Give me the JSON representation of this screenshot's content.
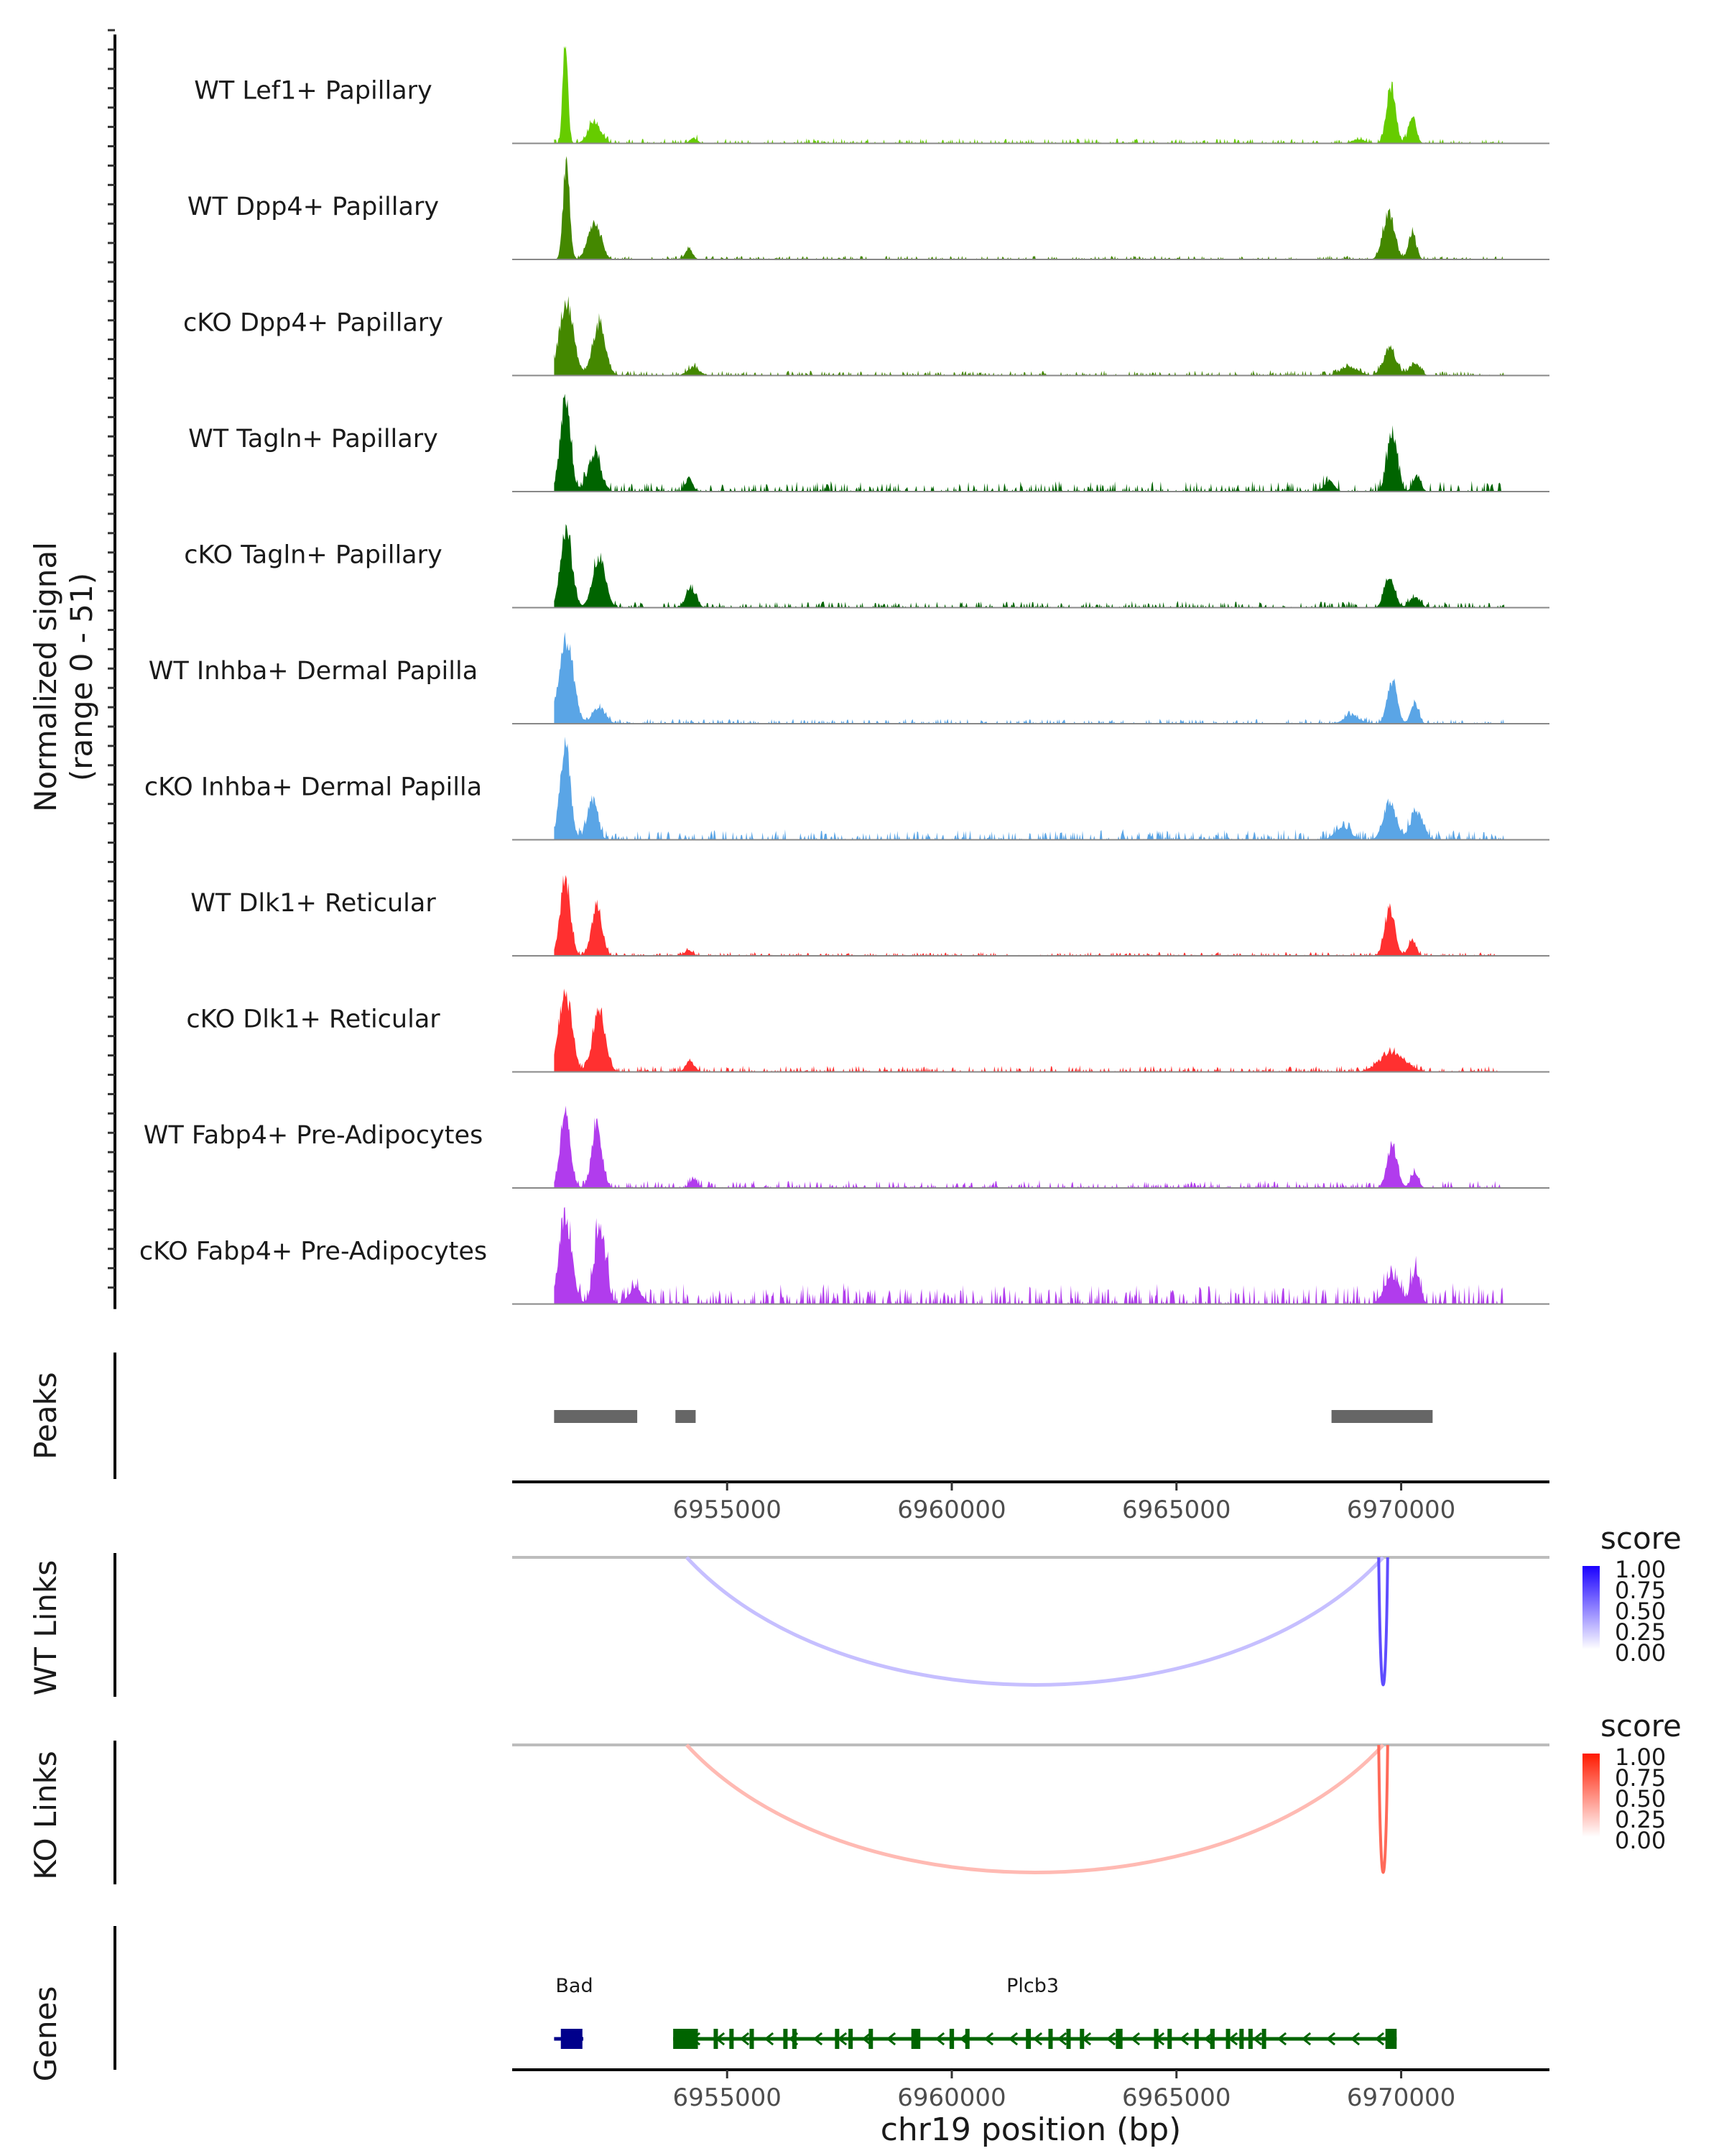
{
  "chart_data": {
    "type": "area",
    "title": "",
    "xlabel": "chr19 position (bp)",
    "ylabel": "Normalized signal\n(range 0 - 51)",
    "ylabel_lines": [
      "Normalized signal",
      "(range 0 - 51)"
    ],
    "ylim": [
      0,
      51
    ],
    "xlim": [
      6950217,
      6973300
    ],
    "x_ticks": [
      6955000,
      6960000,
      6965000,
      6970000
    ],
    "x_tick_labels": [
      "6955000",
      "6960000",
      "6965000",
      "6970000"
    ],
    "coverage_tracks": [
      {
        "name": "WT Lef1+ Papillary",
        "color": "#66cc00",
        "peaks": [
          [
            6951300,
            6951500,
            0.93
          ],
          [
            6951800,
            6952300,
            0.2
          ],
          [
            6954100,
            6954400,
            0.05
          ],
          [
            6968800,
            6969300,
            0.04
          ],
          [
            6969600,
            6969950,
            0.55
          ],
          [
            6970100,
            6970400,
            0.25
          ]
        ],
        "noise": 0.02
      },
      {
        "name": "WT Dpp4+ Papillary",
        "color": "#448800",
        "peaks": [
          [
            6951300,
            6951550,
            0.95
          ],
          [
            6951800,
            6952300,
            0.35
          ],
          [
            6954000,
            6954300,
            0.1
          ],
          [
            6969500,
            6969950,
            0.45
          ],
          [
            6970100,
            6970400,
            0.25
          ]
        ],
        "noise": 0.015
      },
      {
        "name": "cKO Dpp4+ Papillary",
        "color": "#448800",
        "peaks": [
          [
            6951150,
            6951700,
            0.7
          ],
          [
            6951900,
            6952400,
            0.48
          ],
          [
            6954000,
            6954500,
            0.07
          ],
          [
            6968500,
            6969200,
            0.08
          ],
          [
            6969500,
            6970000,
            0.25
          ],
          [
            6970100,
            6970500,
            0.12
          ]
        ],
        "noise": 0.02
      },
      {
        "name": "WT Tagln+ Papillary",
        "color": "#006400",
        "peaks": [
          [
            6951200,
            6951600,
            0.85
          ],
          [
            6951800,
            6952300,
            0.35
          ],
          [
            6954000,
            6954300,
            0.12
          ],
          [
            6968200,
            6968600,
            0.1
          ],
          [
            6969600,
            6970000,
            0.55
          ],
          [
            6970200,
            6970500,
            0.15
          ]
        ],
        "noise": 0.04
      },
      {
        "name": "cKO Tagln+ Papillary",
        "color": "#006400",
        "peaks": [
          [
            6951200,
            6951650,
            0.7
          ],
          [
            6951900,
            6952400,
            0.47
          ],
          [
            6954000,
            6954400,
            0.17
          ],
          [
            6969550,
            6969950,
            0.3
          ],
          [
            6970100,
            6970500,
            0.1
          ]
        ],
        "noise": 0.025
      },
      {
        "name": "WT Inhba+ Dermal Papilla",
        "color": "#5aa5e6",
        "peaks": [
          [
            6951150,
            6951700,
            0.8
          ],
          [
            6951900,
            6952400,
            0.15
          ],
          [
            6968600,
            6969200,
            0.08
          ],
          [
            6969600,
            6970000,
            0.38
          ],
          [
            6970150,
            6970450,
            0.2
          ]
        ],
        "noise": 0.02
      },
      {
        "name": "cKO Inhba+ Dermal Papilla",
        "color": "#5aa5e6",
        "peaks": [
          [
            6951200,
            6951600,
            0.88
          ],
          [
            6951800,
            6952200,
            0.38
          ],
          [
            6968400,
            6969000,
            0.12
          ],
          [
            6969500,
            6970000,
            0.35
          ],
          [
            6970100,
            6970600,
            0.25
          ]
        ],
        "noise": 0.04
      },
      {
        "name": "WT Dlk1+ Reticular",
        "color": "#ff3030",
        "peaks": [
          [
            6951200,
            6951600,
            0.72
          ],
          [
            6951900,
            6952300,
            0.48
          ],
          [
            6954000,
            6954300,
            0.05
          ],
          [
            6969550,
            6969950,
            0.45
          ],
          [
            6970100,
            6970400,
            0.15
          ]
        ],
        "noise": 0.015
      },
      {
        "name": "cKO Dlk1+ Reticular",
        "color": "#ff3030",
        "peaks": [
          [
            6951150,
            6951650,
            0.75
          ],
          [
            6951900,
            6952400,
            0.58
          ],
          [
            6954000,
            6954350,
            0.1
          ],
          [
            6969300,
            6970300,
            0.18
          ]
        ],
        "noise": 0.025
      },
      {
        "name": "WT Fabp4+ Pre-Adipocytes",
        "color": "#b13ced",
        "peaks": [
          [
            6951200,
            6951600,
            0.7
          ],
          [
            6951900,
            6952300,
            0.58
          ],
          [
            6954100,
            6954400,
            0.08
          ],
          [
            6969600,
            6970000,
            0.4
          ],
          [
            6970150,
            6970450,
            0.15
          ]
        ],
        "noise": 0.03
      },
      {
        "name": "cKO Fabp4+ Pre-Adipocytes",
        "color": "#b13ced",
        "peaks": [
          [
            6951150,
            6951650,
            0.8
          ],
          [
            6951950,
            6952400,
            0.7
          ],
          [
            6952700,
            6953200,
            0.15
          ],
          [
            6969500,
            6970100,
            0.25
          ],
          [
            6970150,
            6970500,
            0.28
          ]
        ],
        "noise": 0.08
      }
    ],
    "peaks_track": {
      "label": "Peaks",
      "color": "#666666",
      "regions": [
        [
          6951150,
          6953000
        ],
        [
          6953850,
          6954300
        ],
        [
          6968450,
          6970700
        ]
      ]
    },
    "link_tracks": [
      {
        "label": "WT Links",
        "legend_title": "score",
        "color_low": "#ffffff",
        "color_high": "#1a00ff",
        "links": [
          {
            "start": 6954100,
            "end": 6969600,
            "score": 0.25
          },
          {
            "start": 6969500,
            "end": 6969700,
            "score": 0.7
          }
        ]
      },
      {
        "label": "KO Links",
        "legend_title": "score",
        "color_low": "#ffffff",
        "color_high": "#ff1a00",
        "links": [
          {
            "start": 6954100,
            "end": 6969600,
            "score": 0.3
          },
          {
            "start": 6969500,
            "end": 6969700,
            "score": 0.65
          }
        ]
      }
    ],
    "legend_ticks": [
      "1.00",
      "0.75",
      "0.50",
      "0.25",
      "0.00"
    ],
    "genes_track": {
      "label": "Genes",
      "genes": [
        {
          "name": "Bad",
          "start": 6951150,
          "end": 6951800,
          "strand": "+",
          "color": "#00008b",
          "exons": [
            [
              6951300,
              6951780
            ]
          ]
        },
        {
          "name": "Plcb3",
          "start": 6953800,
          "end": 6969900,
          "strand": "-",
          "color": "#006400",
          "exons": [
            [
              6953800,
              6954350
            ],
            [
              6954700,
              6954780
            ],
            [
              6955050,
              6955130
            ],
            [
              6955500,
              6955560
            ],
            [
              6956250,
              6956330
            ],
            [
              6956450,
              6956520
            ],
            [
              6957400,
              6957480
            ],
            [
              6957700,
              6957760
            ],
            [
              6958150,
              6958230
            ],
            [
              6959100,
              6959300
            ],
            [
              6959950,
              6960050
            ],
            [
              6960300,
              6960380
            ],
            [
              6961650,
              6961760
            ],
            [
              6962150,
              6962220
            ],
            [
              6962550,
              6962640
            ],
            [
              6962850,
              6962940
            ],
            [
              6963650,
              6963800
            ],
            [
              6964500,
              6964600
            ],
            [
              6964800,
              6964890
            ],
            [
              6965400,
              6965480
            ],
            [
              6965750,
              6965850
            ],
            [
              6966100,
              6966170
            ],
            [
              6966400,
              6966460
            ],
            [
              6966600,
              6966680
            ],
            [
              6966900,
              6966980
            ],
            [
              6969650,
              6969900
            ]
          ]
        }
      ]
    }
  }
}
